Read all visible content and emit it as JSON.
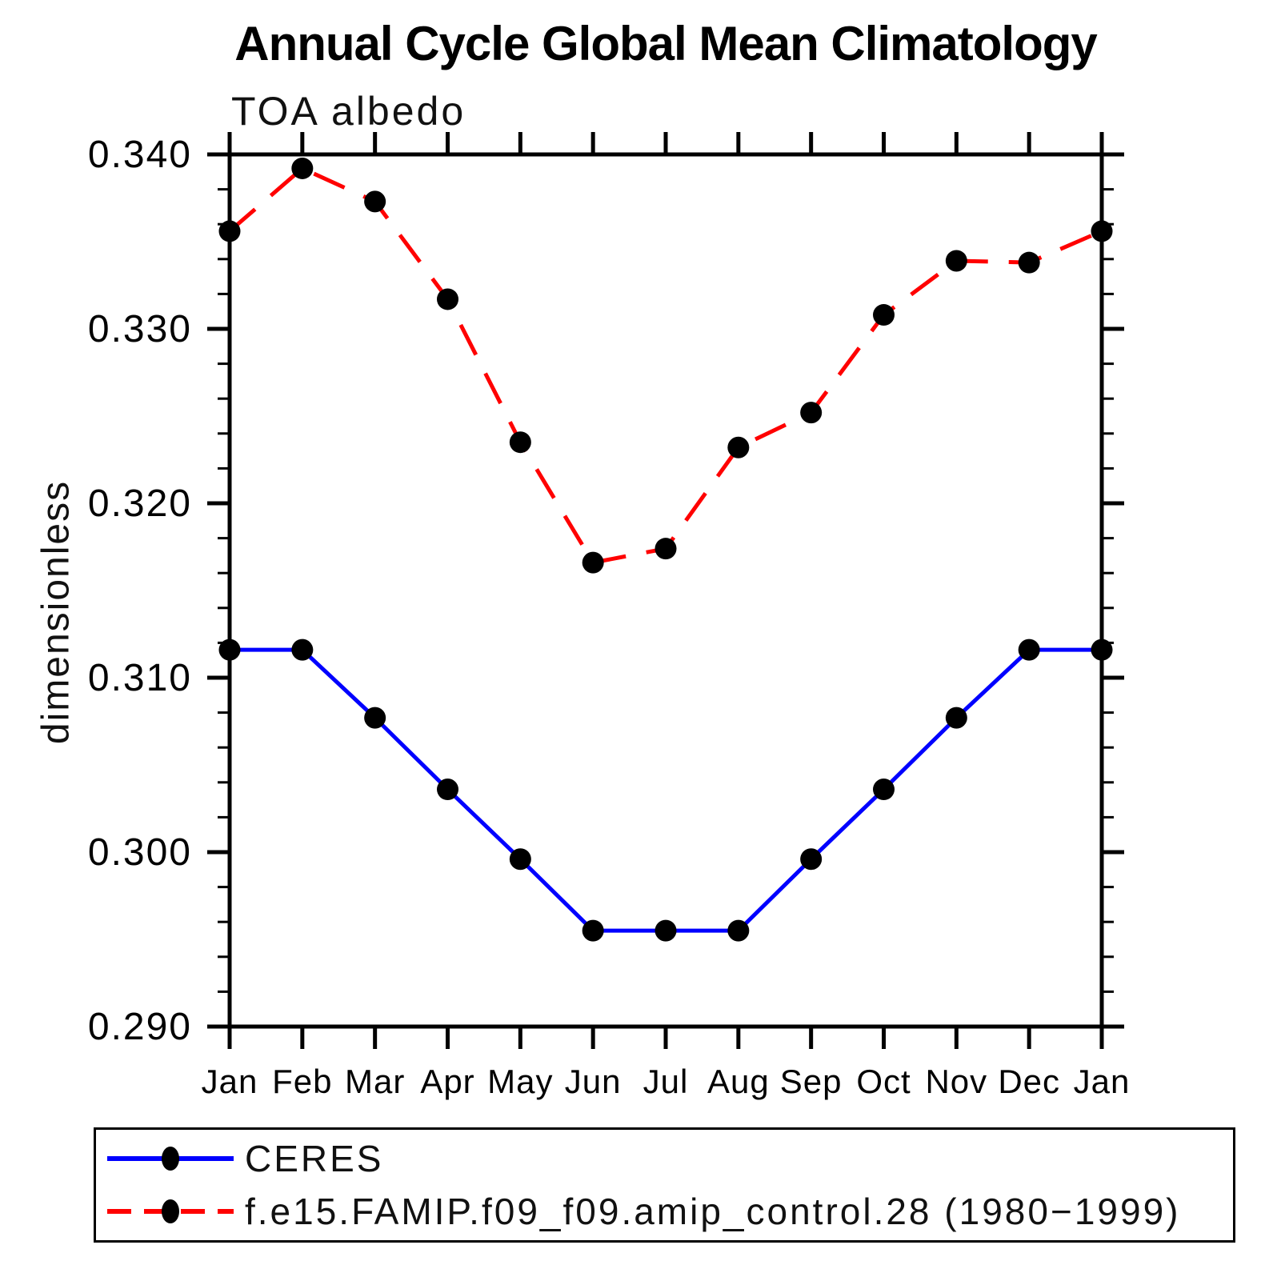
{
  "title": "Annual Cycle Global Mean Climatology",
  "subtitle": "TOA albedo",
  "y_axis_label": "dimensionless",
  "colors": {
    "ceres": "#0000ff",
    "model": "#ff0000",
    "axis": "#000000",
    "marker": "#000000"
  },
  "legend": {
    "items": [
      {
        "label": "CERES",
        "color": "#0000ff",
        "style": "solid"
      },
      {
        "label": "f.e15.FAMIP.f09_f09.amip_control.28 (1980−1999)",
        "color": "#ff0000",
        "style": "dashed"
      }
    ]
  },
  "chart_data": {
    "type": "line",
    "title": "Annual Cycle Global Mean Climatology",
    "subtitle": "TOA albedo",
    "xlabel": "",
    "ylabel": "dimensionless",
    "categories": [
      "Jan",
      "Feb",
      "Mar",
      "Apr",
      "May",
      "Jun",
      "Jul",
      "Aug",
      "Sep",
      "Oct",
      "Nov",
      "Dec",
      "Jan"
    ],
    "ylim": [
      0.29,
      0.34
    ],
    "y_major_step": 0.01,
    "y_minor_step": 0.002,
    "y_tick_labels": [
      "0.290",
      "0.300",
      "0.310",
      "0.320",
      "0.330",
      "0.340"
    ],
    "grid": false,
    "legend_position": "bottom",
    "series": [
      {
        "name": "CERES",
        "color": "#0000ff",
        "line": "solid",
        "marker": "circle",
        "values": [
          0.3116,
          0.3116,
          0.3077,
          0.3036,
          0.2996,
          0.2955,
          0.2955,
          0.2955,
          0.2996,
          0.3036,
          0.3077,
          0.3116,
          0.3116
        ]
      },
      {
        "name": "f.e15.FAMIP.f09_f09.amip_control.28 (1980−1999)",
        "color": "#ff0000",
        "line": "dashed",
        "marker": "circle",
        "values": [
          0.3356,
          0.3392,
          0.3373,
          0.3317,
          0.3235,
          0.3166,
          0.3174,
          0.3232,
          0.3252,
          0.3308,
          0.3339,
          0.3338,
          0.3356
        ]
      }
    ]
  }
}
